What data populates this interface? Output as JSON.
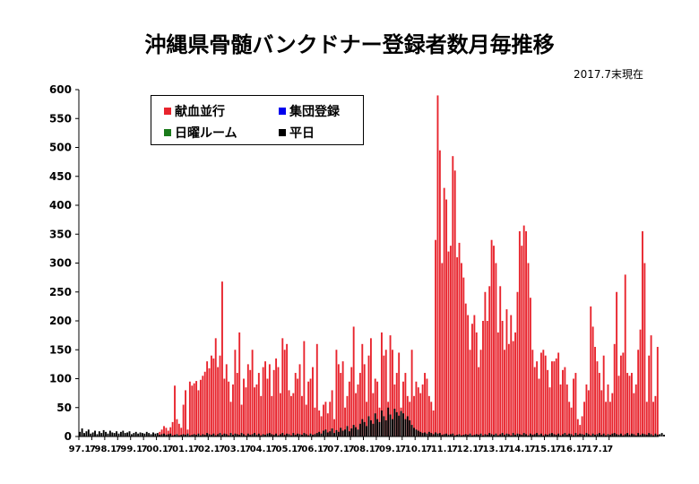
{
  "chart_data": {
    "type": "bar",
    "title": "沖縄県骨髄バンクドナー登録者数月毎推移",
    "note": "2017.7末現在",
    "xlabel": "",
    "ylabel": "",
    "ylim": [
      0,
      600
    ],
    "yticks": [
      0,
      50,
      100,
      150,
      200,
      250,
      300,
      350,
      400,
      450,
      500,
      550,
      600
    ],
    "xtick_labels": [
      "97.1",
      "7",
      "98.1",
      "7",
      "99.1",
      "7",
      "00.1",
      "7",
      "01.1",
      "7",
      "02.1",
      "7",
      "03.1",
      "7",
      "04.1",
      "7",
      "05.1",
      "7",
      "06.1",
      "7",
      "07.1",
      "7",
      "08.1",
      "7",
      "09.1",
      "7",
      "10.1",
      "7",
      "11.1",
      "7",
      "12.1",
      "7",
      "13.1",
      "7",
      "14.1",
      "7",
      "15.1",
      "7",
      "16.1",
      "7",
      "17.1",
      "7"
    ],
    "start_year": 1997,
    "legend_position": "top-left",
    "grid": false,
    "series": [
      {
        "name": "献血並行",
        "color": "#e8242d",
        "values": [
          0,
          0,
          0,
          0,
          0,
          0,
          0,
          0,
          0,
          0,
          0,
          0,
          0,
          0,
          0,
          0,
          0,
          0,
          0,
          0,
          0,
          0,
          0,
          0,
          0,
          0,
          0,
          0,
          0,
          0,
          0,
          0,
          0,
          0,
          0,
          0,
          0,
          8,
          12,
          18,
          15,
          10,
          16,
          25,
          88,
          30,
          22,
          15,
          55,
          80,
          12,
          95,
          88,
          92,
          96,
          80,
          98,
          105,
          112,
          130,
          118,
          140,
          135,
          170,
          120,
          140,
          268,
          100,
          125,
          95,
          60,
          90,
          150,
          110,
          180,
          55,
          100,
          85,
          125,
          115,
          150,
          85,
          90,
          110,
          70,
          120,
          130,
          100,
          125,
          70,
          115,
          135,
          120,
          75,
          170,
          150,
          160,
          80,
          70,
          75,
          110,
          100,
          125,
          70,
          165,
          55,
          95,
          100,
          120,
          50,
          160,
          45,
          35,
          55,
          60,
          40,
          60,
          80,
          30,
          150,
          125,
          110,
          130,
          50,
          70,
          95,
          120,
          190,
          75,
          90,
          110,
          160,
          125,
          60,
          140,
          170,
          75,
          100,
          95,
          50,
          180,
          140,
          150,
          60,
          175,
          150,
          90,
          110,
          145,
          50,
          95,
          110,
          70,
          60,
          150,
          70,
          95,
          85,
          75,
          90,
          110,
          100,
          70,
          60,
          45,
          340,
          590,
          495,
          300,
          430,
          410,
          320,
          330,
          485,
          460,
          310,
          335,
          300,
          275,
          230,
          210,
          150,
          195,
          210,
          180,
          120,
          150,
          200,
          250,
          200,
          260,
          340,
          330,
          300,
          180,
          260,
          200,
          150,
          220,
          160,
          210,
          165,
          180,
          250,
          355,
          330,
          365,
          355,
          300,
          240,
          150,
          120,
          130,
          100,
          145,
          150,
          140,
          115,
          85,
          130,
          130,
          135,
          145,
          90,
          115,
          120,
          90,
          60,
          50,
          100,
          110,
          30,
          20,
          35,
          60,
          90,
          80,
          225,
          190,
          155,
          130,
          110,
          80,
          140,
          60,
          90,
          60,
          75,
          160,
          250,
          105,
          140,
          145,
          280,
          110,
          105,
          110,
          75,
          90,
          150,
          185,
          355,
          300,
          60,
          140,
          175,
          60,
          70,
          155
        ]
      },
      {
        "name": "集団登録",
        "color": "#0000ee",
        "values": [
          0,
          0,
          0,
          0,
          0,
          0,
          0,
          0,
          0,
          0,
          0,
          0,
          0,
          0,
          0,
          0,
          0,
          0,
          0,
          0,
          0,
          0,
          0,
          0,
          0,
          0,
          0,
          0,
          0,
          0,
          0,
          0,
          0,
          0,
          0,
          0,
          0,
          0,
          0,
          0,
          0,
          0,
          0,
          0,
          0,
          0,
          0,
          0,
          0,
          0,
          0,
          0,
          0,
          0,
          0,
          0,
          0,
          0,
          0,
          0,
          0,
          0,
          0,
          0,
          0,
          0,
          0,
          0,
          0,
          0,
          0,
          0,
          0,
          0,
          0,
          0,
          0,
          0,
          0,
          0,
          0,
          0,
          0,
          0,
          0,
          0,
          0,
          0,
          0,
          0,
          0,
          0,
          0,
          0,
          0,
          0,
          0,
          0,
          0,
          0,
          0,
          0,
          0,
          0,
          0,
          0,
          0,
          0,
          0,
          0,
          0,
          0,
          0,
          0,
          0,
          0,
          0,
          0,
          0,
          0,
          0,
          0,
          0,
          0,
          0,
          0,
          0,
          0,
          0,
          0,
          0,
          0,
          0,
          0,
          0,
          0,
          0,
          0,
          0,
          0,
          0,
          0,
          0,
          0,
          0,
          0,
          0,
          0,
          0,
          0,
          0,
          0,
          0,
          0,
          0,
          0,
          0,
          0,
          0,
          0,
          0,
          0,
          0,
          0,
          0,
          0,
          0,
          0,
          0,
          0,
          0,
          0,
          0,
          0,
          0,
          0,
          0,
          0,
          0,
          0,
          0,
          0,
          0,
          0,
          0,
          0,
          0,
          0,
          0,
          0,
          0,
          0,
          0,
          0,
          0,
          0,
          0,
          0,
          0,
          0,
          0,
          0,
          0,
          0,
          0,
          0,
          0,
          0,
          0,
          0,
          0,
          0,
          0,
          0,
          0,
          0,
          0,
          0,
          0,
          0,
          0,
          0,
          0,
          0,
          0,
          0,
          0,
          0,
          0,
          0,
          0,
          0,
          0,
          0,
          0,
          0,
          0,
          0,
          0,
          0,
          0,
          0,
          0,
          0,
          0,
          0,
          0,
          0,
          0,
          0,
          0,
          0,
          0,
          0,
          0,
          0,
          0,
          0,
          0,
          0,
          0,
          0,
          0,
          0,
          0,
          0,
          0,
          0,
          0,
          0,
          0,
          0,
          0,
          0,
          0,
          0,
          0,
          0,
          0
        ]
      },
      {
        "name": "日曜ルーム",
        "color": "#1a7a1a",
        "values": [
          0,
          0,
          0,
          0,
          0,
          0,
          0,
          0,
          0,
          0,
          0,
          0,
          0,
          0,
          0,
          0,
          0,
          0,
          0,
          0,
          0,
          0,
          0,
          0,
          0,
          0,
          0,
          0,
          0,
          0,
          0,
          0,
          0,
          0,
          0,
          0,
          0,
          0,
          0,
          0,
          0,
          0,
          0,
          0,
          0,
          0,
          0,
          0,
          0,
          0,
          0,
          0,
          0,
          0,
          0,
          0,
          0,
          0,
          0,
          0,
          0,
          0,
          0,
          0,
          0,
          0,
          0,
          0,
          0,
          0,
          0,
          0,
          0,
          0,
          0,
          0,
          0,
          0,
          0,
          0,
          0,
          0,
          0,
          0,
          0,
          0,
          0,
          0,
          0,
          0,
          0,
          0,
          0,
          0,
          0,
          0,
          0,
          0,
          0,
          0,
          0,
          0,
          0,
          0,
          0,
          0,
          0,
          0,
          0,
          0,
          0,
          0,
          0,
          0,
          0,
          0,
          0,
          0,
          0,
          0,
          0,
          0,
          0,
          0,
          0,
          0,
          0,
          0,
          0,
          0,
          0,
          0,
          0,
          0,
          0,
          0,
          0,
          0,
          0,
          0,
          0,
          0,
          0,
          0,
          0,
          0,
          0,
          0,
          0,
          0,
          0,
          0,
          0,
          0,
          0,
          0,
          0,
          0,
          0,
          0,
          0,
          0,
          0,
          0,
          0,
          0,
          0,
          0,
          0,
          0,
          0,
          0,
          0,
          0,
          0,
          0,
          0,
          0,
          0,
          0,
          0,
          0,
          0,
          0,
          0,
          0,
          0,
          0,
          0,
          0,
          0,
          0,
          0,
          0,
          0,
          0,
          0,
          0,
          0,
          0,
          0,
          0,
          0,
          0,
          0,
          0,
          0,
          0,
          0,
          0,
          0,
          0,
          0,
          0,
          0,
          0,
          0,
          0,
          0,
          0,
          0,
          0,
          0,
          0,
          0,
          0,
          0,
          0,
          0,
          0,
          0,
          0,
          0,
          0,
          0,
          0,
          0,
          0,
          0,
          0,
          0,
          0,
          0,
          0,
          0,
          0,
          0,
          0,
          0,
          0,
          0,
          0,
          0,
          0,
          0,
          0,
          0,
          0,
          0,
          0,
          0,
          0,
          0,
          0,
          0,
          0,
          0,
          0,
          0,
          0,
          0,
          0,
          0,
          0,
          0,
          0,
          0,
          0,
          0,
          0
        ]
      },
      {
        "name": "平日",
        "color": "#000000",
        "values": [
          8,
          14,
          6,
          9,
          12,
          5,
          7,
          10,
          4,
          9,
          6,
          11,
          8,
          5,
          10,
          7,
          6,
          9,
          5,
          8,
          10,
          6,
          7,
          9,
          4,
          6,
          8,
          5,
          7,
          6,
          5,
          8,
          6,
          4,
          7,
          5,
          6,
          3,
          4,
          5,
          3,
          4,
          5,
          2,
          3,
          4,
          2,
          3,
          4,
          3,
          5,
          2,
          3,
          4,
          3,
          5,
          2,
          4,
          3,
          6,
          4,
          3,
          5,
          2,
          4,
          6,
          3,
          5,
          4,
          2,
          6,
          3,
          5,
          4,
          3,
          6,
          4,
          2,
          5,
          3,
          4,
          6,
          3,
          5,
          2,
          4,
          3,
          5,
          6,
          4,
          3,
          5,
          2,
          4,
          6,
          3,
          5,
          4,
          2,
          6,
          3,
          5,
          4,
          3,
          6,
          4,
          2,
          5,
          3,
          4,
          6,
          8,
          5,
          10,
          12,
          7,
          9,
          14,
          6,
          11,
          8,
          15,
          10,
          12,
          18,
          9,
          14,
          20,
          16,
          12,
          22,
          30,
          25,
          18,
          35,
          28,
          22,
          40,
          30,
          25,
          45,
          35,
          28,
          50,
          38,
          30,
          48,
          42,
          36,
          44,
          40,
          30,
          35,
          28,
          20,
          15,
          12,
          10,
          8,
          6,
          7,
          5,
          8,
          6,
          4,
          7,
          5,
          6,
          3,
          4,
          5,
          3,
          4,
          5,
          2,
          3,
          4,
          2,
          3,
          4,
          3,
          5,
          2,
          3,
          4,
          3,
          5,
          2,
          4,
          3,
          6,
          4,
          3,
          5,
          2,
          4,
          6,
          3,
          5,
          4,
          2,
          6,
          3,
          5,
          4,
          3,
          6,
          4,
          2,
          5,
          3,
          4,
          6,
          3,
          5,
          2,
          4,
          3,
          5,
          6,
          4,
          3,
          5,
          2,
          4,
          6,
          3,
          5,
          4,
          2,
          6,
          3,
          5,
          4,
          3,
          6,
          4,
          2,
          5,
          3,
          4,
          6,
          3,
          5,
          2,
          4,
          3,
          5,
          6,
          4,
          3,
          5,
          2,
          4,
          6,
          3,
          5,
          4,
          2,
          6,
          3,
          5,
          4,
          3,
          6,
          4,
          2,
          5,
          3,
          4,
          6,
          3
        ]
      }
    ]
  }
}
